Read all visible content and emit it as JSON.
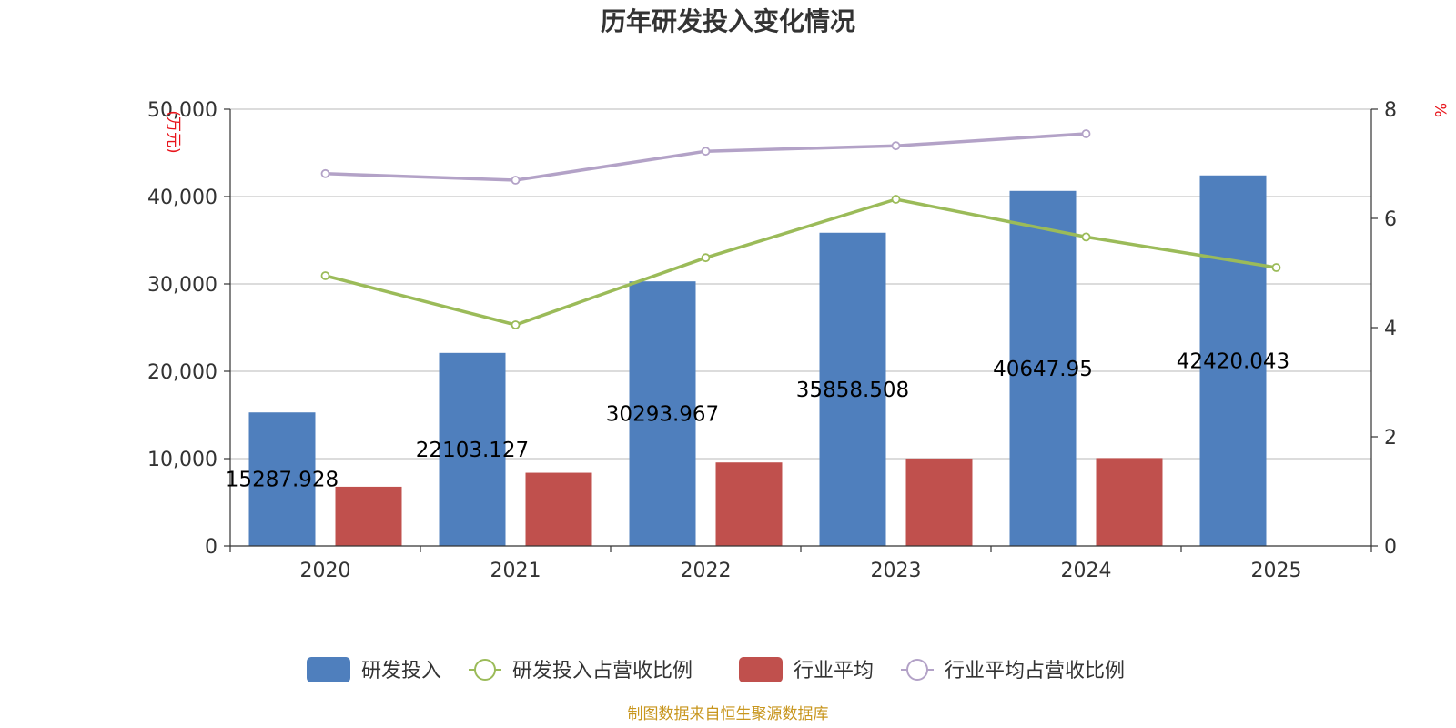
{
  "chart_data": {
    "type": "bar",
    "title": "历年研发投入变化情况",
    "categories": [
      "2020",
      "2021",
      "2022",
      "2023",
      "2024",
      "2025"
    ],
    "y_left": {
      "unit": "(万元)",
      "ylim": [
        0,
        50000
      ],
      "ticks": [
        0,
        10000,
        20000,
        30000,
        40000,
        50000
      ],
      "tick_labels": [
        "0",
        "10,000",
        "20,000",
        "30,000",
        "40,000",
        "50,000"
      ]
    },
    "y_right": {
      "unit": "%",
      "ylim": [
        0,
        8
      ],
      "ticks": [
        0,
        2,
        4,
        6,
        8
      ],
      "tick_labels": [
        "0",
        "2",
        "4",
        "6",
        "8"
      ]
    },
    "series": [
      {
        "name": "研发投入",
        "kind": "bar",
        "axis": "left",
        "color": "#4f7fbd",
        "values": [
          15287.928,
          22103.127,
          30293.967,
          35858.508,
          40647.95,
          42420.043
        ],
        "labels": [
          "15287.928",
          "22103.127",
          "30293.967",
          "35858.508",
          "40647.95",
          "42420.043"
        ]
      },
      {
        "name": "研发投入占营收比例",
        "kind": "line",
        "axis": "right",
        "color": "#9bbb59",
        "values": [
          4.95,
          4.05,
          5.28,
          6.35,
          5.66,
          5.1
        ]
      },
      {
        "name": "行业平均",
        "kind": "bar",
        "axis": "left",
        "color": "#c0504d",
        "values": [
          6780,
          8380,
          9560,
          10010,
          10060,
          null
        ]
      },
      {
        "name": "行业平均占营收比例",
        "kind": "line",
        "axis": "right",
        "color": "#b3a2c7",
        "values": [
          6.82,
          6.7,
          7.23,
          7.33,
          7.55,
          null
        ]
      }
    ],
    "grid": true,
    "legend_position": "bottom"
  },
  "source": "制图数据来自恒生聚源数据库"
}
